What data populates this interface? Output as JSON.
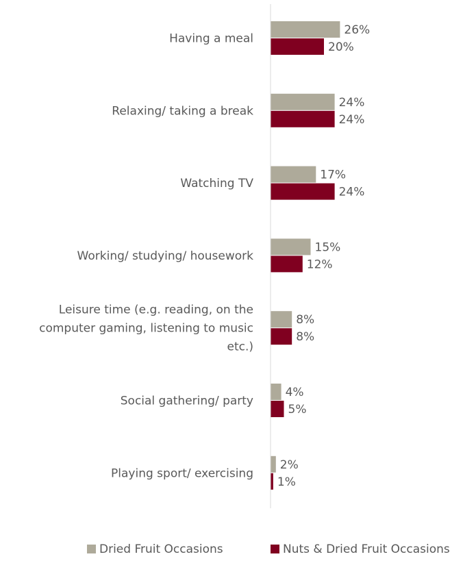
{
  "chart_data": {
    "type": "bar",
    "orientation": "horizontal",
    "categories": [
      "Having a meal",
      "Relaxing/ taking a break",
      "Watching TV",
      "Working/ studying/ housework",
      "Leisure time (e.g. reading, on the computer gaming, listening to music etc.)",
      "Social gathering/ party",
      "Playing sport/ exercising"
    ],
    "category_lines": [
      [
        "Having a meal"
      ],
      [
        "Relaxing/ taking a break"
      ],
      [
        "Watching TV"
      ],
      [
        "Working/ studying/ housework"
      ],
      [
        "Leisure time (e.g. reading, on the",
        "computer gaming, listening to music",
        "etc.)"
      ],
      [
        "Social gathering/ party"
      ],
      [
        "Playing sport/ exercising"
      ]
    ],
    "series": [
      {
        "name": "Dried Fruit Occasions",
        "color": "#aeaa9a",
        "values": [
          26,
          24,
          17,
          15,
          8,
          4,
          2
        ],
        "labels": [
          "26%",
          "24%",
          "17%",
          "15%",
          "8%",
          "4%",
          "2%"
        ]
      },
      {
        "name": "Nuts & Dried Fruit Occasions",
        "color": "#800020",
        "values": [
          20,
          24,
          24,
          12,
          8,
          5,
          1
        ],
        "labels": [
          "20%",
          "24%",
          "24%",
          "12%",
          "8%",
          "5%",
          "1%"
        ]
      }
    ],
    "xlim": [
      0,
      100
    ],
    "value_unit": "%",
    "grid": false,
    "legend": "bottom-center",
    "axis_color": "#d9d9d9"
  }
}
